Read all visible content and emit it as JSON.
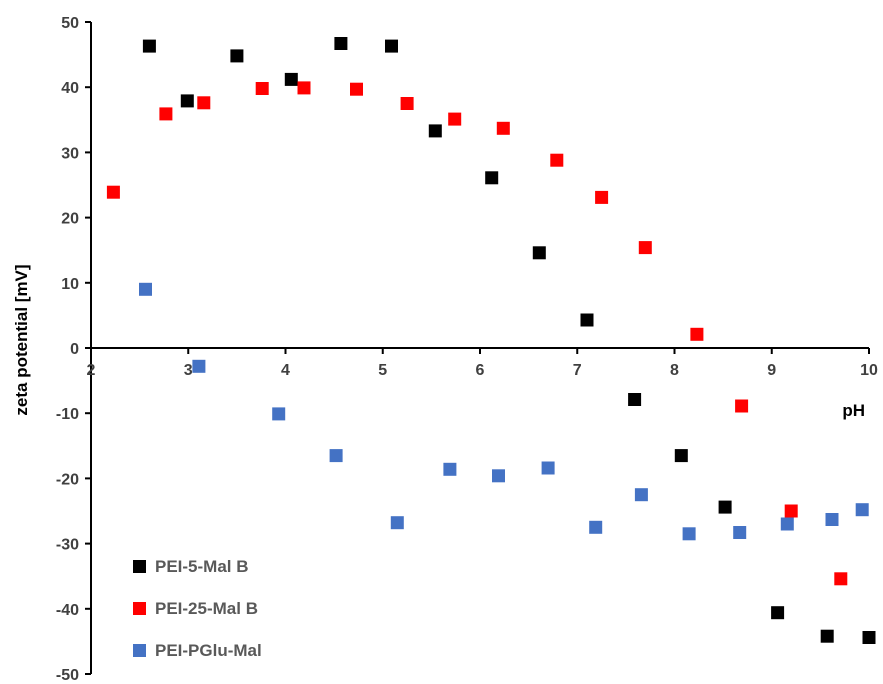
{
  "chart_data": {
    "type": "scatter",
    "title": "",
    "xlabel": "pH",
    "ylabel": "zeta potential [mV]",
    "xlim": [
      2,
      10
    ],
    "ylim": [
      -50,
      50
    ],
    "x_ticks": [
      2,
      3,
      4,
      5,
      6,
      7,
      8,
      9,
      10
    ],
    "y_ticks": [
      50,
      40,
      30,
      20,
      10,
      0,
      -10,
      -20,
      -30,
      -40,
      -50
    ],
    "x_tick_labels": [
      "2",
      "3",
      "4",
      "5",
      "6",
      "7",
      "8",
      "9",
      "10"
    ],
    "y_tick_labels": [
      "50",
      "40",
      "30",
      "20",
      "10",
      "0",
      "-10",
      "-20",
      "-30",
      "-40",
      "-50"
    ],
    "grid": false,
    "legend_position": "bottom-left",
    "series": [
      {
        "name": "PEI-5-Mal B",
        "color": "#000000",
        "marker": "square",
        "points": [
          [
            2.6,
            46.3
          ],
          [
            2.99,
            37.9
          ],
          [
            3.5,
            44.8
          ],
          [
            4.06,
            41.2
          ],
          [
            4.57,
            46.7
          ],
          [
            5.09,
            46.3
          ],
          [
            5.54,
            33.3
          ],
          [
            6.12,
            26.1
          ],
          [
            6.61,
            14.6
          ],
          [
            7.1,
            4.3
          ],
          [
            7.59,
            -7.9
          ],
          [
            8.07,
            -16.5
          ],
          [
            8.52,
            -24.4
          ],
          [
            9.06,
            -40.6
          ],
          [
            9.57,
            -44.2
          ],
          [
            10.0,
            -44.4
          ]
        ]
      },
      {
        "name": "PEI-25-Mal B",
        "color": "#ff0000",
        "marker": "square",
        "points": [
          [
            2.23,
            23.9
          ],
          [
            2.77,
            35.9
          ],
          [
            3.16,
            37.6
          ],
          [
            3.76,
            39.8
          ],
          [
            4.19,
            39.9
          ],
          [
            4.73,
            39.7
          ],
          [
            5.25,
            37.5
          ],
          [
            5.74,
            35.1
          ],
          [
            6.24,
            33.7
          ],
          [
            6.79,
            28.8
          ],
          [
            7.25,
            23.1
          ],
          [
            7.7,
            15.4
          ],
          [
            8.23,
            2.1
          ],
          [
            8.69,
            -8.9
          ],
          [
            9.2,
            -25.0
          ],
          [
            9.71,
            -35.4
          ]
        ]
      },
      {
        "name": "PEI-PGlu-Mal",
        "color": "#4472c4",
        "marker": "square",
        "points": [
          [
            2.56,
            9.0
          ],
          [
            3.11,
            -2.8
          ],
          [
            3.93,
            -10.1
          ],
          [
            4.52,
            -16.5
          ],
          [
            5.15,
            -26.8
          ],
          [
            5.69,
            -18.6
          ],
          [
            6.19,
            -19.6
          ],
          [
            6.7,
            -18.4
          ],
          [
            7.19,
            -27.5
          ],
          [
            7.66,
            -22.5
          ],
          [
            8.15,
            -28.5
          ],
          [
            8.67,
            -28.3
          ],
          [
            9.16,
            -27.0
          ],
          [
            9.62,
            -26.3
          ],
          [
            9.93,
            -24.8
          ]
        ]
      }
    ]
  }
}
